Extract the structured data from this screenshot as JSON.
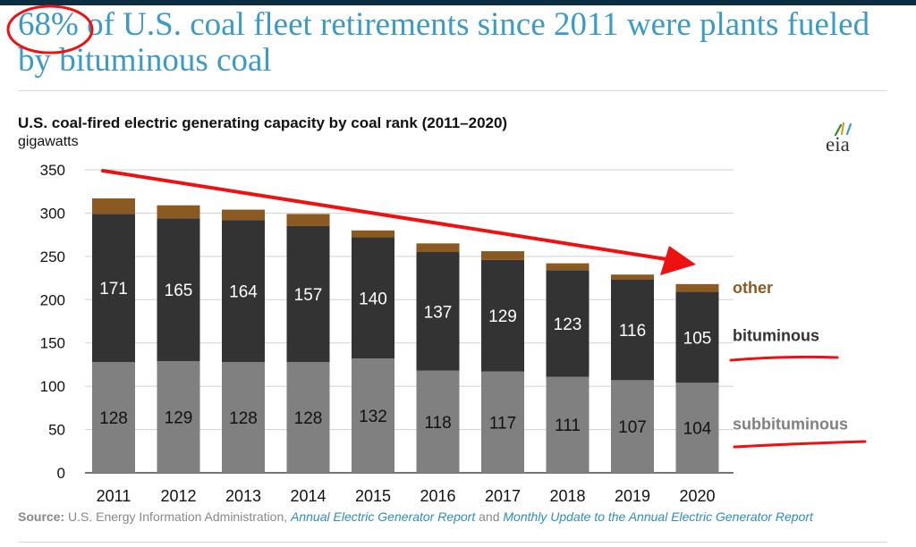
{
  "headline": {
    "highlight": "68%",
    "rest": " of U.S. coal fleet retirements since 2011 were plants fueled by bituminous coal"
  },
  "chart_title": "U.S. coal-fired electric generating capacity by coal rank (2011–2020)",
  "unit_label": "gigawatts",
  "logo_text": "eia",
  "source": {
    "label": "Source:",
    "text1": " U.S. Energy Information Administration, ",
    "link1": "Annual Electric Generator Report",
    "text2": " and ",
    "link2": "Monthly Update to the Annual Electric Generator Report"
  },
  "colors": {
    "headline": "#3c9bc4",
    "subbituminous": "#808080",
    "bituminous": "#333333",
    "other": "#8b5a23",
    "annotation_red": "#ee1111",
    "link": "#2f8bbd"
  },
  "chart_data": {
    "type": "bar",
    "stacked": true,
    "categories": [
      "2011",
      "2012",
      "2013",
      "2014",
      "2015",
      "2016",
      "2017",
      "2018",
      "2019",
      "2020"
    ],
    "series": [
      {
        "name": "subbituminous",
        "values": [
          128,
          129,
          128,
          128,
          132,
          118,
          117,
          111,
          107,
          104
        ]
      },
      {
        "name": "bituminous",
        "values": [
          171,
          165,
          164,
          157,
          140,
          137,
          129,
          123,
          116,
          105
        ]
      },
      {
        "name": "other",
        "values": [
          18,
          15,
          12,
          14,
          8,
          10,
          10,
          8,
          6,
          9
        ]
      }
    ],
    "ylim": [
      0,
      350
    ],
    "yticks": [
      0,
      50,
      100,
      150,
      200,
      250,
      300,
      350
    ],
    "grid": true,
    "legend": "right, inline labels"
  }
}
